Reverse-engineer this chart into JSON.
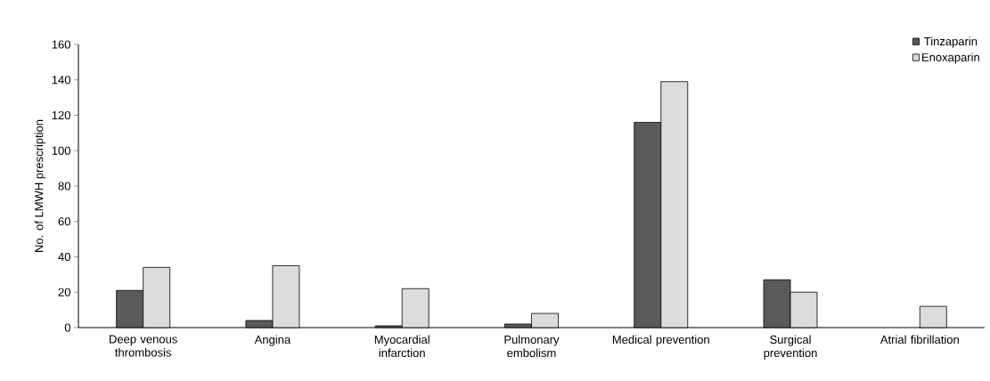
{
  "chart_data": {
    "type": "bar",
    "ylabel": "No. of LMWH prescription",
    "categories": [
      "Deep venous thrombosis",
      "Angina",
      "Myocardial infarction",
      "Pulmonary embolism",
      "Medical prevention",
      "Surgical prevention",
      "Atrial fibrillation"
    ],
    "series": [
      {
        "name": "Tinzaparin",
        "color": "#5a5a5a",
        "values": [
          21,
          4,
          1,
          2,
          116,
          27,
          null
        ]
      },
      {
        "name": "Enoxaparin",
        "color": "#dcdcdc",
        "values": [
          34,
          35,
          22,
          8,
          139,
          20,
          12
        ]
      }
    ],
    "ylim": [
      0,
      160
    ],
    "yticks": [
      0,
      20,
      40,
      60,
      80,
      100,
      120,
      140,
      160
    ],
    "grid": false,
    "legend": "top right"
  }
}
